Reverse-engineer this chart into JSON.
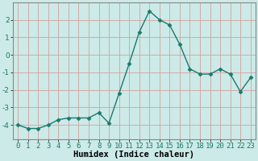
{
  "x": [
    0,
    1,
    2,
    3,
    4,
    5,
    6,
    7,
    8,
    9,
    10,
    11,
    12,
    13,
    14,
    15,
    16,
    17,
    18,
    19,
    20,
    21,
    22,
    23
  ],
  "y": [
    -4.0,
    -4.2,
    -4.2,
    -4.0,
    -3.7,
    -3.6,
    -3.6,
    -3.6,
    -3.3,
    -3.9,
    -2.2,
    -0.5,
    1.3,
    2.5,
    2.0,
    1.7,
    0.6,
    -0.8,
    -1.1,
    -1.1,
    -0.8,
    -1.1,
    -2.1,
    -1.3
  ],
  "line_color": "#1a7a6e",
  "marker": "D",
  "marker_size": 2.5,
  "linewidth": 1.0,
  "xlabel": "Humidex (Indice chaleur)",
  "xlim": [
    -0.5,
    23.5
  ],
  "ylim": [
    -4.8,
    3.0
  ],
  "xtick_labels": [
    "0",
    "1",
    "2",
    "3",
    "4",
    "5",
    "6",
    "7",
    "8",
    "9",
    "10",
    "11",
    "12",
    "13",
    "14",
    "15",
    "16",
    "17",
    "18",
    "19",
    "20",
    "21",
    "22",
    "23"
  ],
  "yticks": [
    -4,
    -3,
    -2,
    -1,
    0,
    1,
    2
  ],
  "bg_color": "#cceae7",
  "grid_color": "#d4a0a0",
  "xlabel_fontsize": 7.5,
  "tick_fontsize": 6.5,
  "spine_color": "#888888"
}
